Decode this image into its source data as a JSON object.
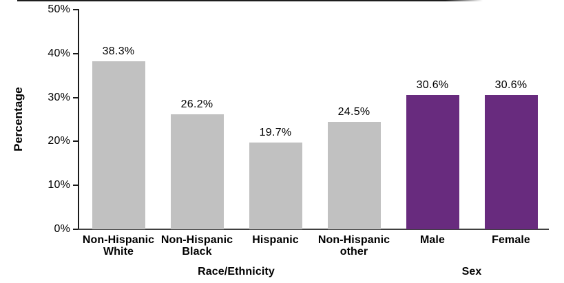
{
  "chart_data": {
    "type": "bar",
    "title": "",
    "ylabel": "Percentage",
    "xlabel": "",
    "ylim": [
      0,
      50
    ],
    "grid": false,
    "legend": "none",
    "ytick_values": [
      0,
      10,
      20,
      30,
      40,
      50
    ],
    "ytick_labels": [
      "0%",
      "10%",
      "20%",
      "30%",
      "40%",
      "50%"
    ],
    "categories": [
      "Non-Hispanic White",
      "Non-Hispanic Black",
      "Hispanic",
      "Non-Hispanic other",
      "Male",
      "Female"
    ],
    "values": [
      38.3,
      26.2,
      19.7,
      24.5,
      30.6,
      30.6
    ],
    "bars": [
      {
        "category_lines": [
          "Non-Hispanic",
          "White"
        ],
        "value": 38.3,
        "value_label": "38.3%",
        "group": "Race/Ethnicity",
        "color": "#c1c1c1"
      },
      {
        "category_lines": [
          "Non-Hispanic",
          "Black"
        ],
        "value": 26.2,
        "value_label": "26.2%",
        "group": "Race/Ethnicity",
        "color": "#c1c1c1"
      },
      {
        "category_lines": [
          "Hispanic"
        ],
        "value": 19.7,
        "value_label": "19.7%",
        "group": "Race/Ethnicity",
        "color": "#c1c1c1"
      },
      {
        "category_lines": [
          "Non-Hispanic",
          "other"
        ],
        "value": 24.5,
        "value_label": "24.5%",
        "group": "Race/Ethnicity",
        "color": "#c1c1c1"
      },
      {
        "category_lines": [
          "Male"
        ],
        "value": 30.6,
        "value_label": "30.6%",
        "group": "Sex",
        "color": "#682b7e"
      },
      {
        "category_lines": [
          "Female"
        ],
        "value": 30.6,
        "value_label": "30.6%",
        "group": "Sex",
        "color": "#682b7e"
      }
    ],
    "group_labels": [
      {
        "text": "Race/Ethnicity",
        "bar_span": [
          0,
          3
        ]
      },
      {
        "text": "Sex",
        "bar_span": [
          4,
          5
        ]
      }
    ],
    "colors": {
      "race_ethnicity_bar": "#c1c1c1",
      "sex_bar": "#682b7e",
      "axis": "#1a1a1a",
      "text": "#000000"
    }
  }
}
